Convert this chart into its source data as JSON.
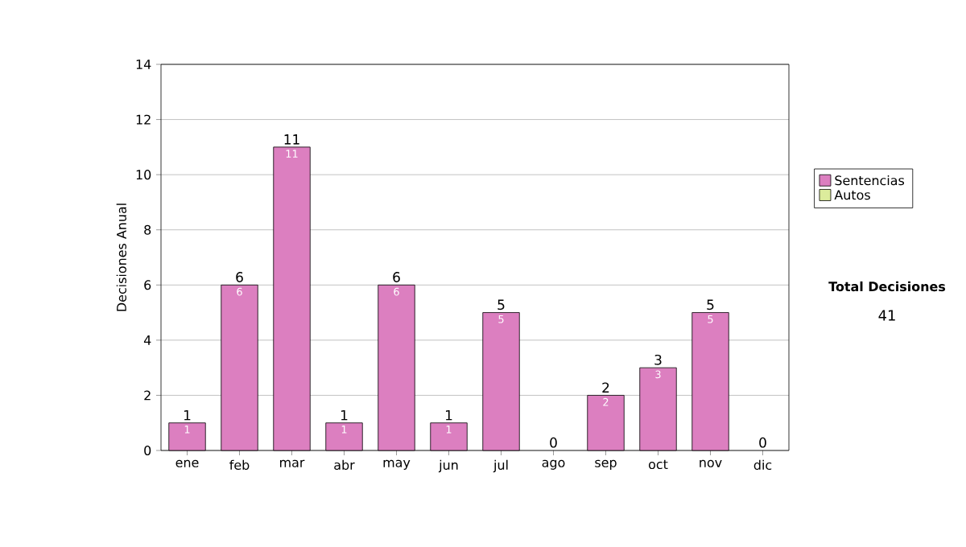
{
  "chart_data": {
    "type": "bar",
    "stacked": true,
    "ylabel": "Decisiones Anual",
    "categories": [
      "ene",
      "feb",
      "mar",
      "abr",
      "may",
      "jun",
      "jul",
      "ago",
      "sep",
      "oct",
      "nov",
      "dic"
    ],
    "series": [
      {
        "name": "Sentencias",
        "color": "#dc7fc0",
        "values": [
          1,
          6,
          11,
          1,
          6,
          1,
          5,
          0,
          2,
          3,
          5,
          0
        ],
        "value_labels": [
          "1",
          "6",
          "11",
          "1",
          "6",
          "1",
          "5",
          null,
          "2",
          "3",
          "5",
          null
        ]
      },
      {
        "name": "Autos",
        "color": "#dcec9c",
        "values": [
          0,
          0,
          0,
          0,
          0,
          0,
          0,
          0,
          0,
          0,
          0,
          0
        ]
      }
    ],
    "totals": [
      "1",
      "6",
      "11",
      "1",
      "6",
      "1",
      "5",
      "0",
      "2",
      "3",
      "5",
      "0"
    ],
    "ylim": [
      0,
      14
    ],
    "yticks": [
      0,
      2,
      4,
      6,
      8,
      10,
      12,
      14
    ],
    "grid": "y",
    "legend": "right",
    "annotations": [
      "Total Decisiones",
      "41"
    ]
  }
}
